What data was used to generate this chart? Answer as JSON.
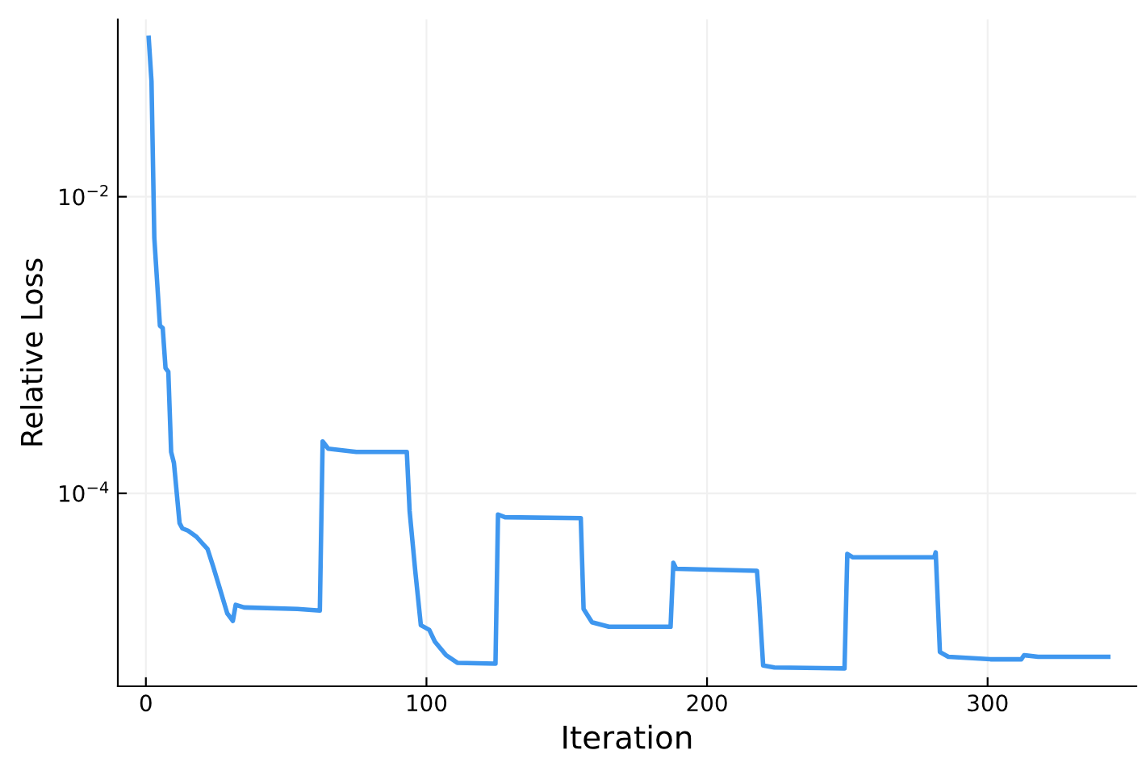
{
  "chart_data": {
    "type": "line",
    "xlabel": "Iteration",
    "ylabel": "Relative Loss",
    "log": "y",
    "grid": true,
    "xlim": [
      -10,
      353
    ],
    "ylim": [
      5e-06,
      0.157
    ],
    "xticks": [
      0,
      100,
      200,
      300
    ],
    "yticks": [
      {
        "value": 0.01,
        "label": "10$^{−2}$"
      },
      {
        "value": 0.0001,
        "label": "10$^{−4}$"
      }
    ],
    "series": [
      {
        "color": "#3f97ef",
        "x": [
          1,
          2,
          3,
          5,
          6,
          7,
          8,
          9,
          10,
          12,
          13,
          15,
          18,
          22,
          24,
          26,
          29,
          31,
          32,
          35,
          54,
          62,
          63,
          65,
          75,
          93,
          94,
          96,
          98,
          101,
          103,
          107,
          111,
          124.6,
          125.5,
          128,
          155,
          156,
          159,
          165,
          187,
          188,
          189,
          217.8,
          218.5,
          220,
          224,
          249,
          250,
          252,
          281,
          281.5,
          283,
          286,
          301,
          312,
          313,
          318,
          343
        ],
        "values": [
          0.118,
          0.06,
          0.0053,
          0.00135,
          0.0013,
          0.0007,
          0.00066,
          0.00019,
          0.00016,
          6.3e-05,
          5.8e-05,
          5.6e-05,
          5.1e-05,
          4.2e-05,
          3.2e-05,
          2.4e-05,
          1.55e-05,
          1.38e-05,
          1.77e-05,
          1.7e-05,
          1.66e-05,
          1.62e-05,
          0.000224,
          0.0002,
          0.00019,
          0.00019,
          7.6e-05,
          3e-05,
          1.29e-05,
          1.2e-05,
          1e-05,
          8.1e-06,
          7.2e-06,
          7.1e-06,
          7.2e-05,
          6.9e-05,
          6.8e-05,
          1.66e-05,
          1.35e-05,
          1.26e-05,
          1.26e-05,
          3.4e-05,
          3.1e-05,
          3e-05,
          2e-05,
          6.9e-06,
          6.7e-06,
          6.6e-06,
          3.9e-05,
          3.7e-05,
          3.7e-05,
          4e-05,
          8.5e-06,
          7.9e-06,
          7.6e-06,
          7.6e-06,
          8.1e-06,
          7.9e-06,
          7.9e-06
        ]
      }
    ]
  }
}
